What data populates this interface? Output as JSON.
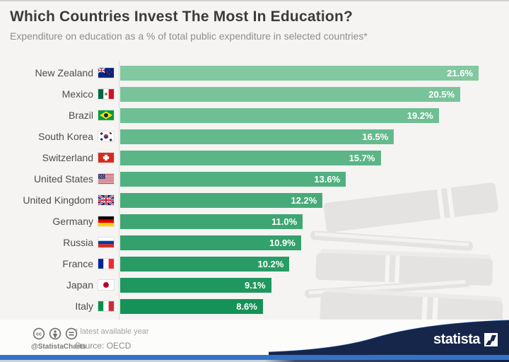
{
  "header": {
    "title": "Which Countries Invest The Most In Education?",
    "subtitle": "Expenditure on education as a % of total public expenditure in selected countries*"
  },
  "chart_data": {
    "type": "bar",
    "orientation": "horizontal",
    "title": "Which Countries Invest The Most In Education?",
    "subtitle": "Expenditure on education as a % of total public expenditure in selected countries*",
    "xlabel": "",
    "ylabel": "",
    "xlim": [
      0,
      21.6
    ],
    "grid": false,
    "legend": false,
    "categories": [
      "New Zealand",
      "Mexico",
      "Brazil",
      "South Korea",
      "Switzerland",
      "United States",
      "United Kingdom",
      "Germany",
      "Russia",
      "France",
      "Japan",
      "Italy"
    ],
    "values": [
      21.6,
      20.5,
      19.2,
      16.5,
      15.7,
      13.6,
      12.2,
      11.0,
      10.9,
      10.2,
      9.1,
      8.6
    ],
    "value_labels": [
      "21.6%",
      "20.5%",
      "19.2%",
      "16.5%",
      "15.7%",
      "13.6%",
      "12.2%",
      "11.0%",
      "10.9%",
      "10.2%",
      "9.1%",
      "8.6%"
    ],
    "flag_codes": [
      "nz",
      "mx",
      "br",
      "kr",
      "ch",
      "us",
      "gb",
      "de",
      "ru",
      "fr",
      "jp",
      "it"
    ],
    "bar_colors": [
      "#82c8a1",
      "#79c39b",
      "#6fbf94",
      "#65ba8d",
      "#5bb587",
      "#51b080",
      "#47ab79",
      "#3da672",
      "#33a16c",
      "#299c65",
      "#1f975e",
      "#159257"
    ]
  },
  "footer": {
    "license_icons": [
      "cc-icon",
      "attribution-icon",
      "no-derivatives-icon"
    ],
    "handle": "@StatistaCharts",
    "footnote": "* latest available year",
    "source": "Source: OECD",
    "brand": "statista"
  },
  "colors": {
    "background": "#f5f4f2",
    "title_text": "#3b3b3b",
    "subtitle_text": "#8f8e8c",
    "bar_value_text": "#ffffff",
    "accent_blue": "#3273c8",
    "brand_navy": "#16254a",
    "watermark_gray": "#e4e3e1"
  }
}
